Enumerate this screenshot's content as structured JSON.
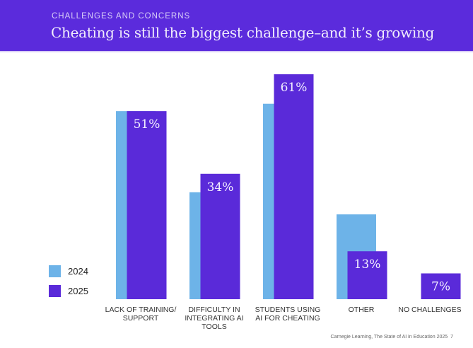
{
  "header": {
    "kicker": "CHALLENGES AND CONCERNS",
    "title": "Cheating is still the biggest challenge–and it’s growing"
  },
  "chart_data": {
    "type": "bar",
    "title": "Cheating is still the biggest challenge–and it’s growing",
    "categories": [
      "LACK OF TRAINING/ SUPPORT",
      "DIFFICULTY IN INTEGRATING AI TOOLS",
      "STUDENTS USING AI FOR CHEATING",
      "OTHER",
      "NO CHALLENGES"
    ],
    "series": [
      {
        "name": "2024",
        "color": "#6db3e8",
        "values": [
          51,
          29,
          53,
          23,
          null
        ]
      },
      {
        "name": "2025",
        "color": "#5a2ad9",
        "values": [
          51,
          34,
          61,
          13,
          7
        ],
        "labels": [
          "51%",
          "34%",
          "61%",
          "13%",
          "7%"
        ]
      }
    ],
    "ylim": [
      0,
      61
    ],
    "grid": false,
    "legend_position": "bottom-left"
  },
  "source": "Carnegie Learning, The State of AI in Education 2025",
  "page_number": "7"
}
